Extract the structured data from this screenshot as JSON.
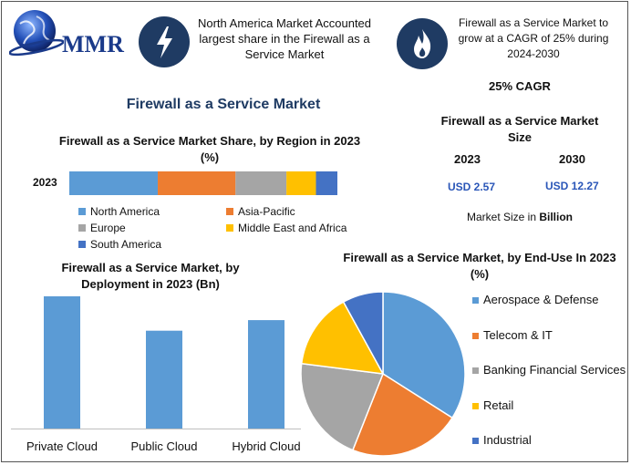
{
  "header": {
    "logo_text": "MMR",
    "box1_text": "North America Market Accounted largest share in the Firewall as a Service Market",
    "box2_text": "Firewall as a Service Market to grow at a CAGR of 25% during 2024-2030"
  },
  "main_title": "Firewall as a Service Market",
  "cagr_label": "25% CAGR",
  "market_size": {
    "title": "Firewall as a Service Market Size",
    "years": [
      "2023",
      "2030"
    ],
    "values": [
      "USD 2.57",
      "USD 12.27"
    ],
    "note_prefix": "Market Size in ",
    "note_unit": "Billion"
  },
  "colors": {
    "blue": "#5b9bd5",
    "orange": "#ed7d31",
    "gray": "#a5a5a5",
    "yellow": "#ffc000",
    "darkblue": "#4472c4",
    "navy": "#1f3b63"
  },
  "chart_data": [
    {
      "type": "bar",
      "orientation": "horizontal-stacked",
      "title": "Firewall as a Service Market Share, by Region in 2023 (%)",
      "categories": [
        "2023"
      ],
      "series": [
        {
          "name": "North America",
          "values": [
            33
          ]
        },
        {
          "name": "Asia-Pacific",
          "values": [
            29
          ]
        },
        {
          "name": "Europe",
          "values": [
            19
          ]
        },
        {
          "name": "Middle East and Africa",
          "values": [
            11
          ]
        },
        {
          "name": "South America",
          "values": [
            8
          ]
        }
      ],
      "legend": "bottom"
    },
    {
      "type": "bar",
      "title": "Firewall as a Service Market, by Deployment in 2023 (Bn)",
      "categories": [
        "Private Cloud",
        "Public Cloud",
        "Hybrid Cloud"
      ],
      "values": [
        1.0,
        0.74,
        0.82
      ],
      "ylim": [
        0,
        1.0
      ]
    },
    {
      "type": "pie",
      "title": "Firewall as a Service Market, by End-Use In 2023 (%)",
      "labels": [
        "Aerospace & Defense",
        "Telecom & IT",
        "Banking Financial Services",
        "Retail",
        "Industrial"
      ],
      "values": [
        34,
        22,
        21,
        15,
        8
      ],
      "legend": "right"
    }
  ]
}
